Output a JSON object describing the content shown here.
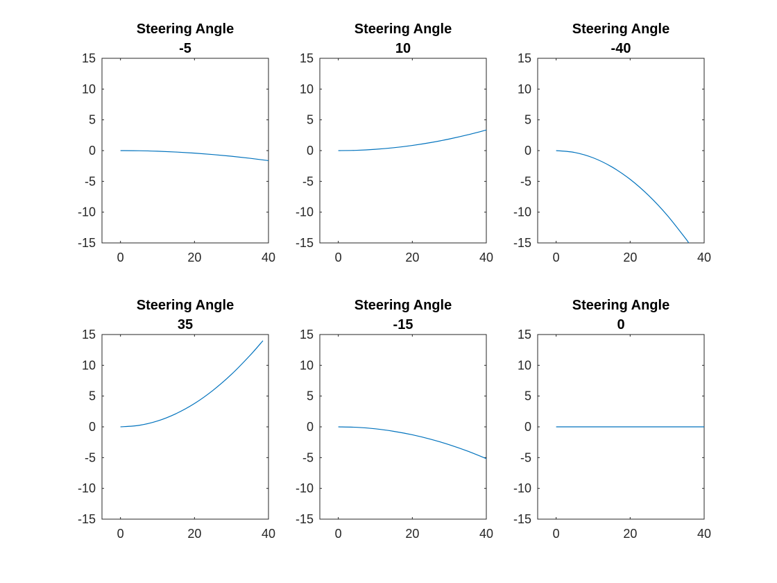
{
  "figure": {
    "line_color": "#0072BD"
  },
  "chart_data": [
    {
      "type": "line",
      "title": [
        "Steering Angle",
        "-5"
      ],
      "xlim": [
        -5,
        40
      ],
      "ylim": [
        -15,
        15
      ],
      "xticks": [
        0,
        20,
        40
      ],
      "yticks": [
        15,
        10,
        5,
        0,
        -5,
        -10,
        -15
      ],
      "grid": true,
      "series": [
        {
          "x": [
            0,
            5,
            10,
            15,
            20,
            25,
            30,
            35,
            40
          ],
          "y": [
            0,
            -0.02,
            -0.1,
            -0.23,
            -0.41,
            -0.64,
            -0.92,
            -1.25,
            -1.63
          ]
        }
      ]
    },
    {
      "type": "line",
      "title": [
        "Steering Angle",
        "10"
      ],
      "xlim": [
        -5,
        40
      ],
      "ylim": [
        -15,
        15
      ],
      "xticks": [
        0,
        20,
        40
      ],
      "yticks": [
        15,
        10,
        5,
        0,
        -5,
        -10,
        -15
      ],
      "grid": true,
      "series": [
        {
          "x": [
            0,
            5,
            10,
            15,
            20,
            25,
            30,
            35,
            40
          ],
          "y": [
            0,
            0.05,
            0.21,
            0.47,
            0.84,
            1.31,
            1.89,
            2.57,
            3.35
          ]
        }
      ]
    },
    {
      "type": "line",
      "title": [
        "Steering Angle",
        "-40"
      ],
      "xlim": [
        -5,
        40
      ],
      "ylim": [
        -15,
        15
      ],
      "xticks": [
        0,
        20,
        40
      ],
      "yticks": [
        15,
        10,
        5,
        0,
        -5,
        -10,
        -15
      ],
      "grid": true,
      "series": [
        {
          "x": [
            0,
            5,
            10,
            15,
            20,
            25,
            30,
            35,
            35.8
          ],
          "y": [
            0,
            -0.3,
            -1.17,
            -2.63,
            -4.67,
            -7.3,
            -10.5,
            -14.3,
            -15
          ]
        }
      ]
    },
    {
      "type": "line",
      "title": [
        "Steering Angle",
        "35"
      ],
      "xlim": [
        -5,
        40
      ],
      "ylim": [
        -15,
        15
      ],
      "xticks": [
        0,
        20,
        40
      ],
      "yticks": [
        15,
        10,
        5,
        0,
        -5,
        -10,
        -15
      ],
      "grid": true,
      "series": [
        {
          "x": [
            0,
            5,
            10,
            15,
            20,
            25,
            30,
            35,
            38.5
          ],
          "y": [
            0,
            0.24,
            0.95,
            2.14,
            3.79,
            5.93,
            8.53,
            11.6,
            14
          ]
        }
      ]
    },
    {
      "type": "line",
      "title": [
        "Steering Angle",
        "-15"
      ],
      "xlim": [
        -5,
        40
      ],
      "ylim": [
        -15,
        15
      ],
      "xticks": [
        0,
        20,
        40
      ],
      "yticks": [
        15,
        10,
        5,
        0,
        -5,
        -10,
        -15
      ],
      "grid": true,
      "series": [
        {
          "x": [
            0,
            5,
            10,
            15,
            20,
            25,
            30,
            35,
            40
          ],
          "y": [
            0,
            -0.08,
            -0.32,
            -0.73,
            -1.29,
            -2.02,
            -2.91,
            -3.96,
            -5.17
          ]
        }
      ]
    },
    {
      "type": "line",
      "title": [
        "Steering Angle",
        "0"
      ],
      "xlim": [
        -5,
        40
      ],
      "ylim": [
        -15,
        15
      ],
      "xticks": [
        0,
        20,
        40
      ],
      "yticks": [
        15,
        10,
        5,
        0,
        -5,
        -10,
        -15
      ],
      "grid": true,
      "series": [
        {
          "x": [
            0,
            40
          ],
          "y": [
            0,
            0
          ]
        }
      ]
    }
  ]
}
